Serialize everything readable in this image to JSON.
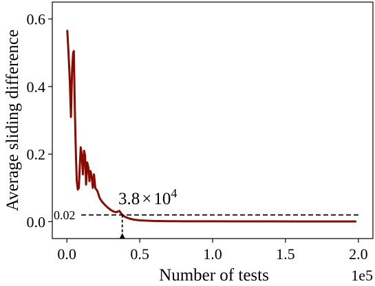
{
  "chart_data": {
    "type": "line",
    "xlabel": "Number of tests",
    "ylabel": "Average sliding difference",
    "x_scale_label": "1e5",
    "xlim": [
      -0.1,
      2.1
    ],
    "ylim": [
      -0.05,
      0.65
    ],
    "xticks": [
      0.0,
      0.5,
      1.0,
      1.5,
      2.0
    ],
    "xtick_labels": [
      "0.0",
      "0.5",
      "1.0",
      "1.5",
      "2.0"
    ],
    "yticks": [
      0.0,
      0.2,
      0.4,
      0.6
    ],
    "ytick_labels": [
      "0.0",
      "0.2",
      "0.4",
      "0.6"
    ],
    "grid": false,
    "line_color": "#8b0a00",
    "series": [
      {
        "x": [
          0.003,
          0.01,
          0.02,
          0.028,
          0.036,
          0.043,
          0.048,
          0.055,
          0.062,
          0.068,
          0.075,
          0.082,
          0.088,
          0.095,
          0.102,
          0.11,
          0.118,
          0.125,
          0.132,
          0.14,
          0.148,
          0.155,
          0.162,
          0.17,
          0.178,
          0.186,
          0.195,
          0.21,
          0.225,
          0.24,
          0.26,
          0.28,
          0.3,
          0.32,
          0.34,
          0.36,
          0.38,
          0.4,
          0.43,
          0.46,
          0.5,
          0.55,
          0.6,
          0.7,
          0.8,
          1.0,
          1.2,
          1.4,
          1.6,
          1.8,
          1.98
        ],
        "y": [
          0.565,
          0.51,
          0.42,
          0.31,
          0.45,
          0.5,
          0.505,
          0.33,
          0.2,
          0.12,
          0.095,
          0.1,
          0.155,
          0.22,
          0.2,
          0.14,
          0.21,
          0.195,
          0.11,
          0.175,
          0.16,
          0.12,
          0.15,
          0.135,
          0.1,
          0.14,
          0.1,
          0.09,
          0.07,
          0.06,
          0.05,
          0.042,
          0.035,
          0.03,
          0.028,
          0.032,
          0.02,
          0.014,
          0.009,
          0.006,
          0.004,
          0.003,
          0.002,
          0.0015,
          0.001,
          0.001,
          0.0008,
          0.0008,
          0.0007,
          0.0007,
          0.0006
        ]
      }
    ],
    "threshold": {
      "y": 0.02,
      "label": "0.02",
      "x_crossing": 0.38,
      "crossing_label_base": "3.8",
      "crossing_label_times": "×",
      "crossing_label_power_base": "10",
      "crossing_label_exponent": "4"
    }
  }
}
